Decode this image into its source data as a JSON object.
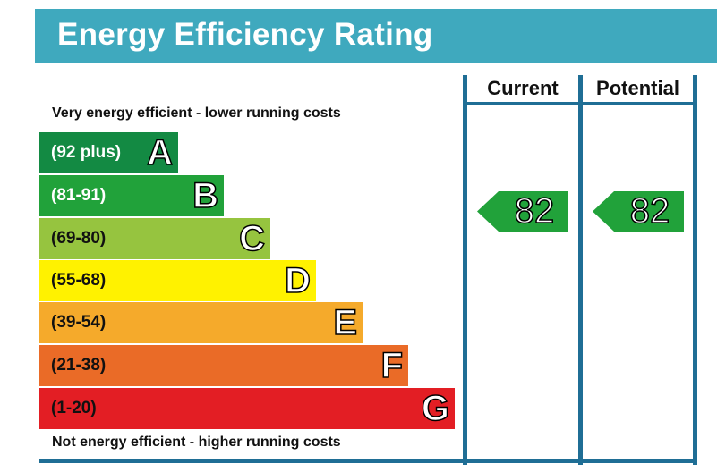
{
  "title": "Energy Efficiency Rating",
  "columns": {
    "current": "Current",
    "potential": "Potential"
  },
  "top_note": "Very energy efficient - lower running costs",
  "bottom_note": "Not energy efficient - higher running costs",
  "bands": [
    {
      "range": "(92 plus)",
      "letter": "A",
      "color": "#138a43"
    },
    {
      "range": "(81-91)",
      "letter": "B",
      "color": "#21a23a"
    },
    {
      "range": "(69-80)",
      "letter": "C",
      "color": "#96c43f"
    },
    {
      "range": "(55-68)",
      "letter": "D",
      "color": "#fff200"
    },
    {
      "range": "(39-54)",
      "letter": "E",
      "color": "#f5aa2b"
    },
    {
      "range": "(21-38)",
      "letter": "F",
      "color": "#ea6b27"
    },
    {
      "range": "(1-20)",
      "letter": "G",
      "color": "#e31e24"
    }
  ],
  "ratings": {
    "current": {
      "value": "82",
      "color": "#21a23a"
    },
    "potential": {
      "value": "82",
      "color": "#21a23a"
    }
  },
  "header_color": "#3fa9be",
  "frame_color": "#1f6e95"
}
